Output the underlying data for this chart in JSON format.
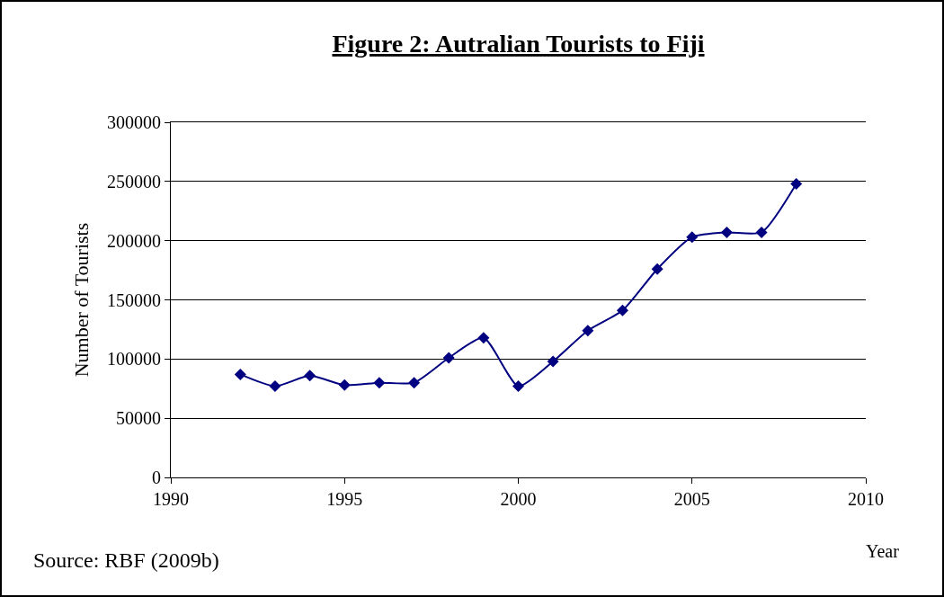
{
  "chart_data": {
    "type": "line",
    "title": "Figure 2: Autralian Tourists to Fiji",
    "xlabel": "Year",
    "ylabel": "Number of Tourists",
    "annotations": [
      "Source: RBF (2009b)"
    ],
    "x": [
      1992,
      1993,
      1994,
      1995,
      1996,
      1997,
      1998,
      1999,
      2000,
      2001,
      2002,
      2003,
      2004,
      2005,
      2006,
      2007,
      2008
    ],
    "series": [
      {
        "color": "#000080",
        "values": [
          87000,
          77000,
          86000,
          78000,
          80000,
          80000,
          101000,
          118000,
          77000,
          98000,
          124000,
          141000,
          176000,
          203000,
          207000,
          207000,
          248000
        ]
      }
    ],
    "xlim": [
      1990,
      2010
    ],
    "xticks": [
      1990,
      1995,
      2000,
      2005,
      2010
    ],
    "ylim": [
      0,
      300000
    ],
    "yticks": [
      0,
      50000,
      100000,
      150000,
      200000,
      250000,
      300000
    ],
    "grid": "y",
    "marker": "diamond",
    "line_style": "solid"
  }
}
